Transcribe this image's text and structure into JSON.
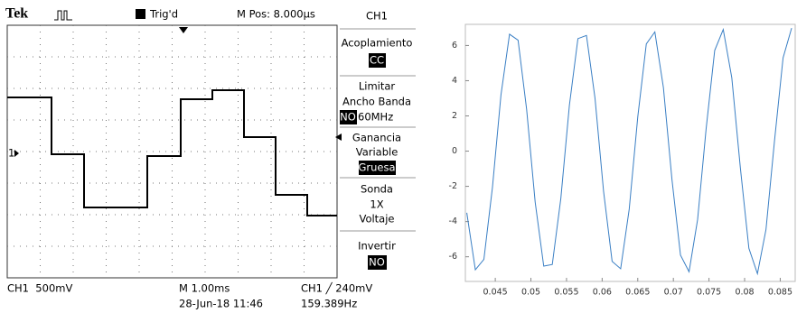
{
  "scope": {
    "header": {
      "brand": "Tek",
      "trigger_status": "Trig'd",
      "position": "M Pos: 8.000µs"
    },
    "channel_marker": "1",
    "menu": {
      "title": "CH1",
      "items": [
        {
          "lines": [
            "Acoplamiento"
          ],
          "selected": "CC"
        },
        {
          "lines": [
            "Limitar",
            "Ancho Banda"
          ],
          "selected": "NO",
          "value": "60MHz"
        },
        {
          "lines": [
            "Ganancia",
            "Variable"
          ],
          "selected": "Gruesa"
        },
        {
          "lines": [
            "Sonda",
            "1X",
            "Voltaje"
          ]
        },
        {
          "lines": [
            "Invertir"
          ],
          "selected": "NO"
        }
      ]
    },
    "footer": {
      "channel_scale": "CH1  500mV",
      "timebase": "M 1.00ms",
      "datetime": "28-Jun-18 11:46",
      "trigger": "CH1 ╱ 240mV",
      "frequency": "159.389Hz"
    }
  },
  "chart_data": {
    "type": "line",
    "color": "#3a7fc4",
    "x": [
      0.041,
      0.0422,
      0.0434,
      0.0446,
      0.0458,
      0.047,
      0.0482,
      0.0494,
      0.0506,
      0.0518,
      0.053,
      0.0542,
      0.0554,
      0.0566,
      0.0578,
      0.059,
      0.0602,
      0.0614,
      0.0626,
      0.0638,
      0.065,
      0.0662,
      0.0674,
      0.0686,
      0.0698,
      0.071,
      0.0722,
      0.0734,
      0.0746,
      0.0758,
      0.077,
      0.0782,
      0.0794,
      0.0806,
      0.0818,
      0.083,
      0.0842,
      0.0854,
      0.0866
    ],
    "values": [
      -3.5,
      -6.74,
      -6.15,
      -2.06,
      3.2,
      6.64,
      6.3,
      2.37,
      -2.9,
      -6.53,
      -6.44,
      -2.69,
      2.59,
      6.39,
      6.57,
      3.0,
      -2.28,
      -6.26,
      -6.68,
      -3.3,
      1.94,
      6.09,
      6.77,
      3.61,
      -1.61,
      -5.91,
      -6.85,
      -3.89,
      1.28,
      5.72,
      6.91,
      4.17,
      -0.94,
      -5.52,
      -6.96,
      -4.45,
      0.6,
      5.3,
      6.99
    ],
    "xlim": [
      0.0408,
      0.0871
    ],
    "ylim": [
      -7.4,
      7.2
    ],
    "xticks": [
      0.045,
      0.05,
      0.055,
      0.06,
      0.065,
      0.07,
      0.075,
      0.08,
      0.085
    ],
    "yticks": [
      -6,
      -4,
      -2,
      0,
      2,
      4,
      6
    ]
  }
}
